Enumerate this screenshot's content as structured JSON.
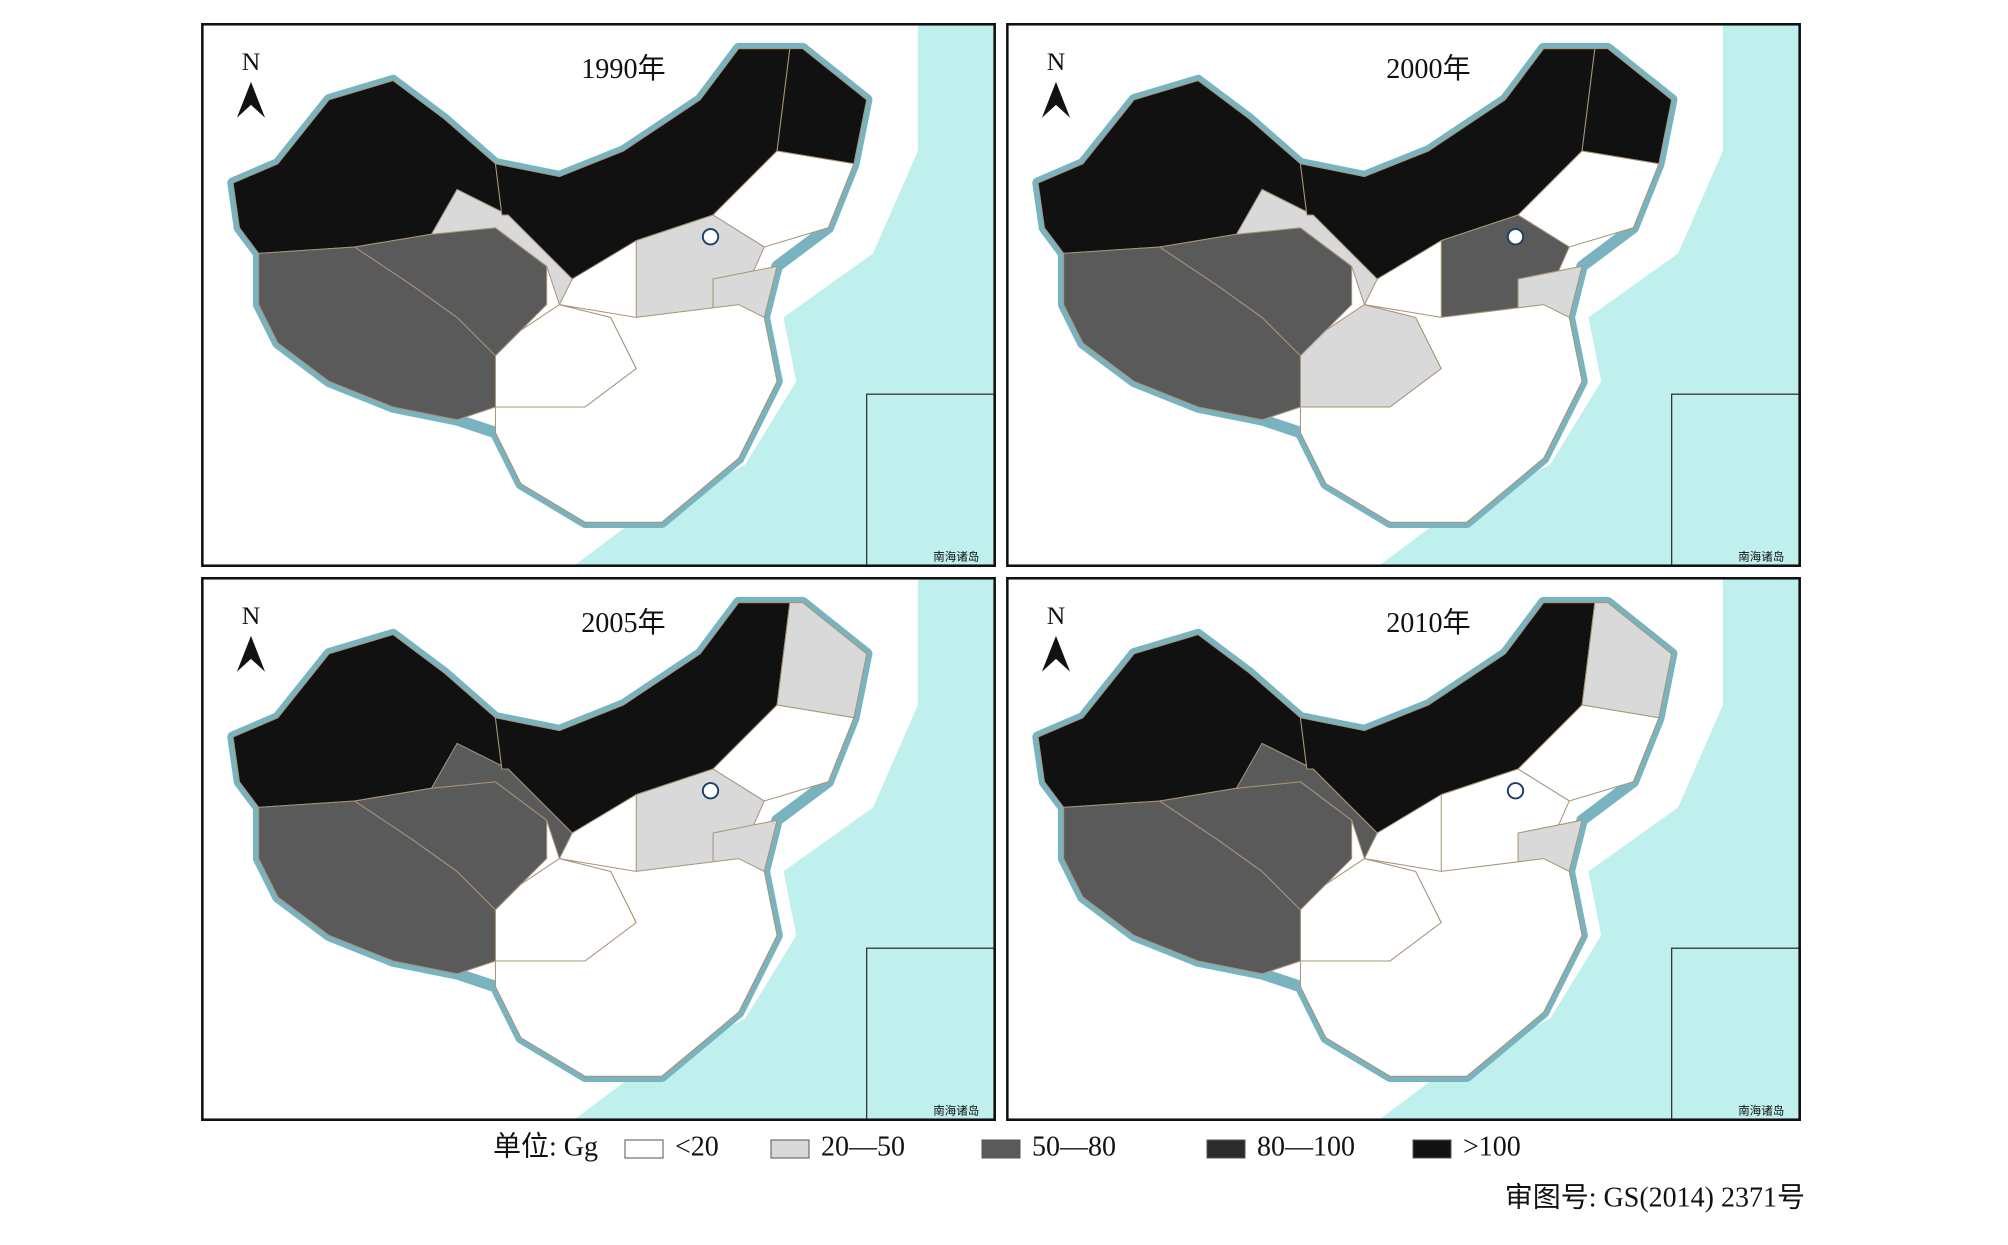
{
  "panels": [
    {
      "title": "1990年"
    },
    {
      "title": "2000年"
    },
    {
      "title": "2005年"
    },
    {
      "title": "2010年"
    }
  ],
  "north": "N",
  "inset_label": "南海诸岛",
  "legend": {
    "unit": "单位: Gg",
    "items": [
      "<20",
      "20—50",
      "50—80",
      "80—100",
      ">100"
    ]
  },
  "approval": "审图号: GS(2014) 2371号"
}
